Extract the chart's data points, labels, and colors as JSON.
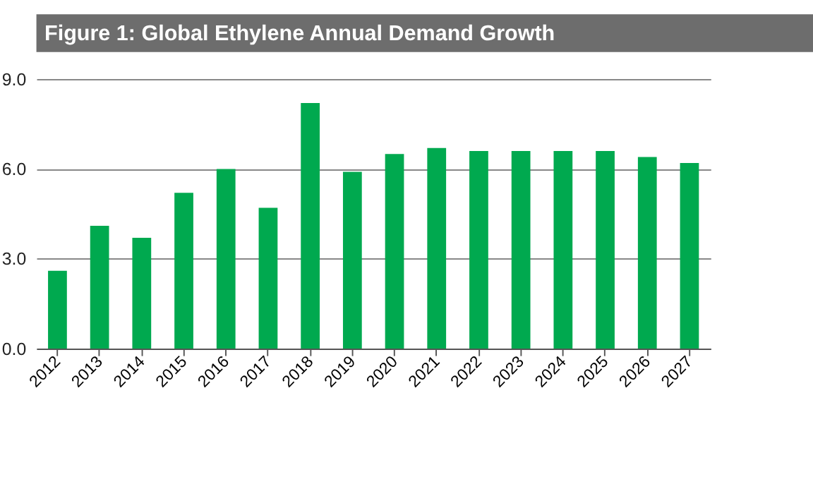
{
  "chart_data": {
    "type": "bar",
    "title": "Figure 1: Global Ethylene Annual Demand Growth",
    "categories": [
      "2012",
      "2013",
      "2014",
      "2015",
      "2016",
      "2017",
      "2018",
      "2019",
      "2020",
      "2021",
      "2022",
      "2023",
      "2024",
      "2025",
      "2026",
      "2027"
    ],
    "values": [
      2.6,
      4.1,
      3.7,
      5.2,
      6.0,
      4.7,
      8.2,
      5.9,
      6.5,
      6.7,
      6.6,
      6.6,
      6.6,
      6.6,
      6.4,
      6.2
    ],
    "color": "#00a94f",
    "ylim": [
      0,
      9
    ],
    "yticks": [
      {
        "value": 0,
        "label": "0.0"
      },
      {
        "value": 3,
        "label": "3.0"
      },
      {
        "value": 6,
        "label": "6.0"
      },
      {
        "value": 9,
        "label": "9.0"
      }
    ],
    "grid": "y"
  }
}
